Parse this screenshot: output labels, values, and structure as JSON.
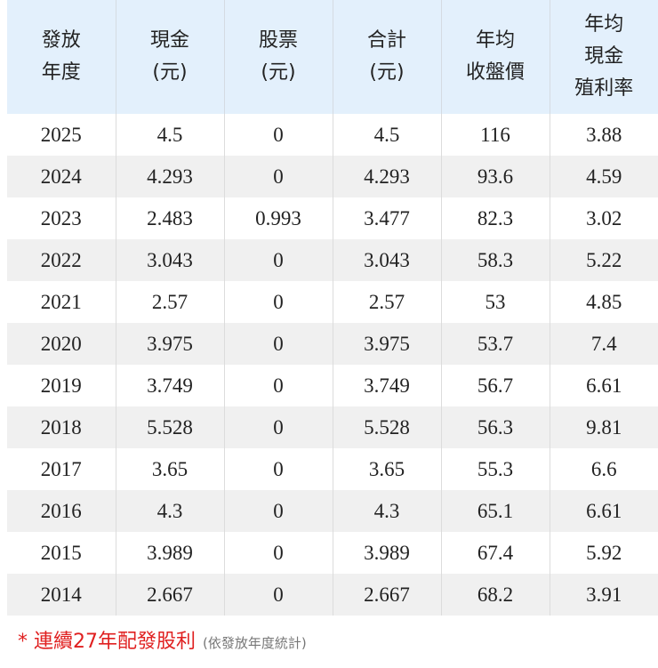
{
  "table": {
    "header": [
      [
        "發放",
        "年度"
      ],
      [
        "現金",
        "(元)"
      ],
      [
        "股票",
        "(元)"
      ],
      [
        "合計",
        "(元)"
      ],
      [
        "年均",
        "收盤價"
      ],
      [
        "年均",
        "現金",
        "殖利率"
      ]
    ],
    "rows": [
      [
        "2025",
        "4.5",
        "0",
        "4.5",
        "116",
        "3.88"
      ],
      [
        "2024",
        "4.293",
        "0",
        "4.293",
        "93.6",
        "4.59"
      ],
      [
        "2023",
        "2.483",
        "0.993",
        "3.477",
        "82.3",
        "3.02"
      ],
      [
        "2022",
        "3.043",
        "0",
        "3.043",
        "58.3",
        "5.22"
      ],
      [
        "2021",
        "2.57",
        "0",
        "2.57",
        "53",
        "4.85"
      ],
      [
        "2020",
        "3.975",
        "0",
        "3.975",
        "53.7",
        "7.4"
      ],
      [
        "2019",
        "3.749",
        "0",
        "3.749",
        "56.7",
        "6.61"
      ],
      [
        "2018",
        "5.528",
        "0",
        "5.528",
        "56.3",
        "9.81"
      ],
      [
        "2017",
        "3.65",
        "0",
        "3.65",
        "55.3",
        "6.6"
      ],
      [
        "2016",
        "4.3",
        "0",
        "4.3",
        "65.1",
        "6.61"
      ],
      [
        "2015",
        "3.989",
        "0",
        "3.989",
        "67.4",
        "5.92"
      ],
      [
        "2014",
        "2.667",
        "0",
        "2.667",
        "68.2",
        "3.91"
      ]
    ]
  },
  "footer": {
    "note": "* 連續27年配發股利",
    "subnote": "(依發放年度統計)"
  }
}
